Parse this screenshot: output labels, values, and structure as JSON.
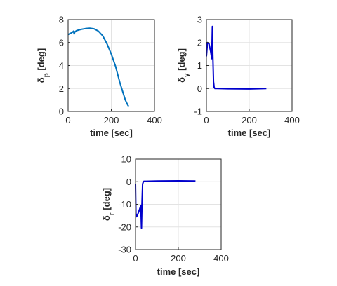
{
  "chart_data": [
    {
      "type": "line",
      "xlabel": "time [sec]",
      "ylabel_main": "δ",
      "ylabel_sub": "p",
      "ylabel_unit": "[deg]",
      "xlim": [
        0,
        400
      ],
      "ylim": [
        0,
        8
      ],
      "xticks": [
        0,
        200,
        400
      ],
      "yticks": [
        0,
        2,
        4,
        6,
        8
      ],
      "grid": true,
      "color": "#0072BD",
      "series": [
        {
          "x": [
            0,
            10,
            20,
            25,
            28,
            32,
            40,
            60,
            80,
            100,
            120,
            140,
            160,
            180,
            200,
            220,
            240,
            255,
            265,
            275,
            280
          ],
          "y": [
            6.7,
            6.8,
            6.9,
            7.0,
            6.75,
            6.95,
            7.05,
            7.15,
            7.22,
            7.25,
            7.2,
            7.0,
            6.6,
            5.9,
            5.0,
            3.9,
            2.5,
            1.6,
            1.0,
            0.6,
            0.45
          ]
        }
      ]
    },
    {
      "type": "line",
      "xlabel": "time [sec]",
      "ylabel_main": "δ",
      "ylabel_sub": "y",
      "ylabel_unit": "[deg]",
      "xlim": [
        0,
        400
      ],
      "ylim": [
        -1,
        3
      ],
      "xticks": [
        0,
        200,
        400
      ],
      "yticks": [
        -1,
        0,
        1,
        2,
        3
      ],
      "grid": true,
      "color": "#0000CC",
      "series": [
        {
          "x": [
            0,
            5,
            12,
            20,
            25,
            28,
            30,
            33,
            36,
            40,
            50,
            100,
            200,
            280
          ],
          "y": [
            1.4,
            2.0,
            1.95,
            1.6,
            1.3,
            2.7,
            1.5,
            0.3,
            0.05,
            0.0,
            0.0,
            -0.01,
            -0.02,
            0.0
          ]
        }
      ]
    },
    {
      "type": "line",
      "xlabel": "time [sec]",
      "ylabel_main": "δ",
      "ylabel_sub": "r",
      "ylabel_unit": "[deg]",
      "xlim": [
        0,
        400
      ],
      "ylim": [
        -30,
        10
      ],
      "xticks": [
        0,
        200,
        400
      ],
      "yticks": [
        -30,
        -20,
        -10,
        0,
        10
      ],
      "grid": true,
      "color": "#0000CC",
      "series": [
        {
          "x": [
            0,
            2,
            5,
            10,
            18,
            25,
            28,
            30,
            33,
            37,
            40,
            50,
            100,
            200,
            280
          ],
          "y": [
            -1,
            -14,
            -15.5,
            -14.5,
            -12.5,
            -10.5,
            -20.5,
            -10,
            -1,
            0.1,
            0.2,
            0.2,
            0.3,
            0.4,
            0.3
          ]
        }
      ]
    }
  ]
}
